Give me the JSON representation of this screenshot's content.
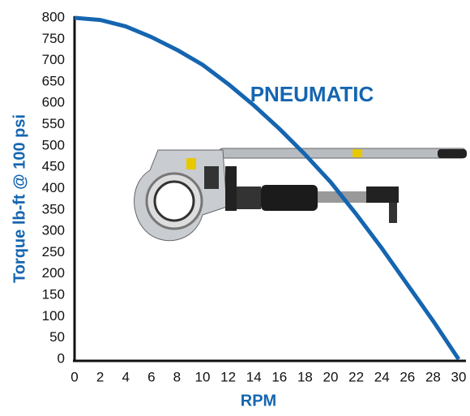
{
  "chart_data": {
    "type": "line",
    "annotation": "PNEUMATIC",
    "xlabel": "RPM",
    "ylabel": "Torque lb-ft @ 100 psi",
    "x": [
      0,
      2,
      4,
      6,
      8,
      10,
      12,
      14,
      16,
      18,
      20,
      22,
      24,
      26,
      28,
      30
    ],
    "series": [
      {
        "color": "#1565b0",
        "values": [
          800,
          795,
          780,
          755,
          725,
          690,
          645,
          595,
          540,
          480,
          415,
          340,
          260,
          175,
          90,
          0
        ]
      }
    ],
    "xlim": [
      0,
      30
    ],
    "xticks": [
      0,
      2,
      4,
      6,
      8,
      10,
      12,
      14,
      16,
      18,
      20,
      22,
      24,
      26,
      28,
      30
    ],
    "ylim": [
      0,
      800
    ],
    "yticks": [
      0,
      50,
      100,
      150,
      200,
      250,
      300,
      350,
      400,
      450,
      500,
      550,
      600,
      650,
      700,
      750,
      800
    ],
    "grid": false
  }
}
